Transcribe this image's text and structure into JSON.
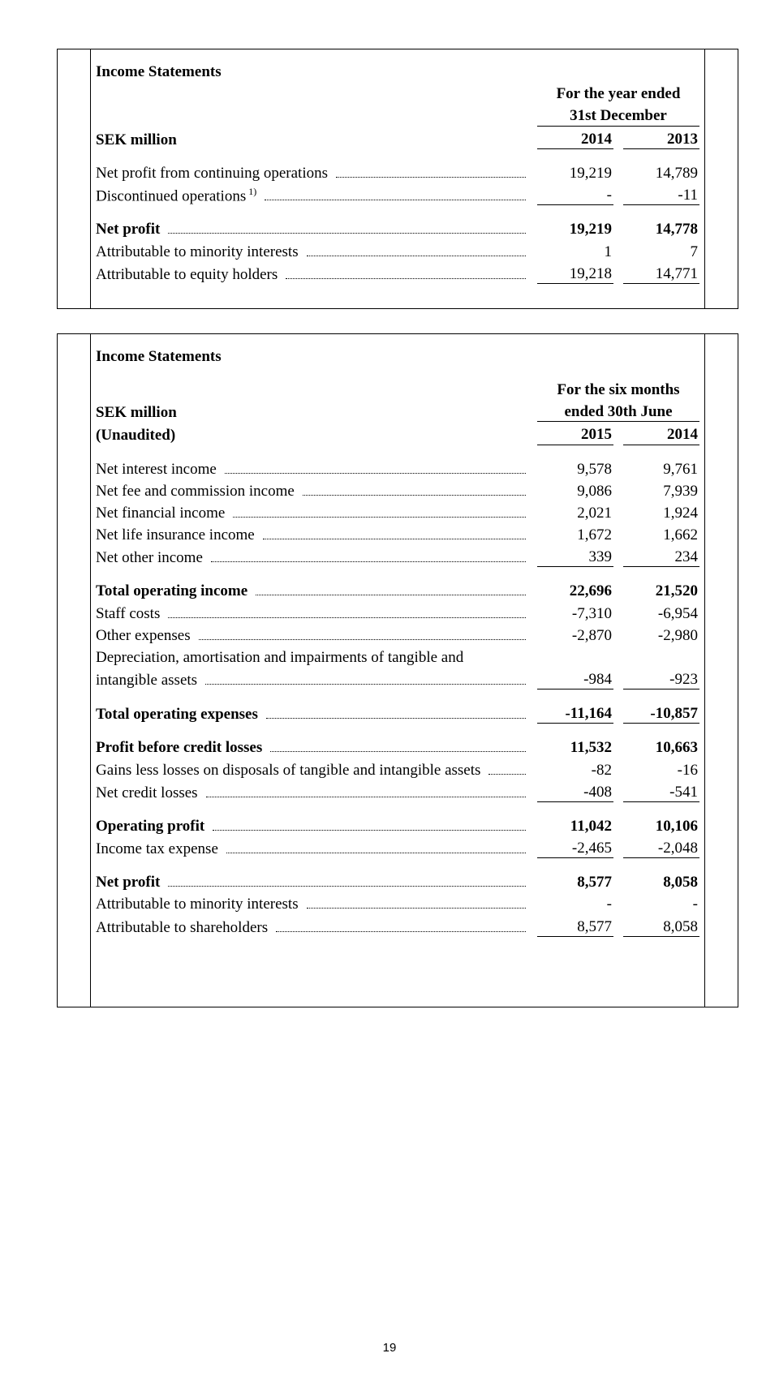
{
  "page_number": "19",
  "table1": {
    "title": "Income Statements",
    "period_header": [
      "For the year ended",
      "31st December"
    ],
    "unit_label": "SEK million",
    "years": [
      "2014",
      "2013"
    ],
    "rows": [
      {
        "label": "Net profit from continuing operations",
        "suffix": "",
        "v1": "19,219",
        "v2": "14,789"
      },
      {
        "label": "Discontinued operations",
        "suffix": " 1)",
        "v1": "-",
        "v2": "-11"
      }
    ],
    "net_profit": {
      "label": "Net profit",
      "v1": "19,219",
      "v2": "14,778"
    },
    "attrib": [
      {
        "label": "Attributable to minority interests",
        "v1": "1",
        "v2": "7"
      },
      {
        "label": "Attributable to equity holders",
        "v1": "19,218",
        "v2": "14,771"
      }
    ]
  },
  "table2": {
    "title": "Income Statements",
    "unit_label": "SEK million",
    "period_header": [
      "For the six months",
      "ended 30th June"
    ],
    "unaudited": "(Unaudited)",
    "years": [
      "2015",
      "2014"
    ],
    "income_rows": [
      {
        "label": "Net interest income",
        "v1": "9,578",
        "v2": "9,761"
      },
      {
        "label": "Net fee and commission income",
        "v1": "9,086",
        "v2": "7,939"
      },
      {
        "label": "Net financial income",
        "v1": "2,021",
        "v2": "1,924"
      },
      {
        "label": "Net life insurance income",
        "v1": "1,672",
        "v2": "1,662"
      },
      {
        "label": "Net other income",
        "v1": "339",
        "v2": "234"
      }
    ],
    "total_op_income": {
      "label": "Total operating income",
      "v1": "22,696",
      "v2": "21,520"
    },
    "expense_rows": [
      {
        "label": "Staff costs",
        "v1": "-7,310",
        "v2": "-6,954"
      },
      {
        "label": "Other expenses",
        "v1": "-2,870",
        "v2": "-2,980"
      }
    ],
    "depr_label_line1": "Depreciation, amortisation and impairments of tangible and",
    "depr_label_line2": "intangible assets",
    "depr_vals": {
      "v1": "-984",
      "v2": "-923"
    },
    "total_op_exp": {
      "label": "Total operating expenses",
      "v1": "-11,164",
      "v2": "-10,857"
    },
    "profit_before": {
      "label": "Profit before credit losses",
      "v1": "11,532",
      "v2": "10,663"
    },
    "credit_rows": [
      {
        "label": "Gains less losses on disposals of tangible and intangible assets",
        "v1": "-82",
        "v2": "-16"
      },
      {
        "label": "Net credit losses",
        "v1": "-408",
        "v2": "-541"
      }
    ],
    "op_profit": {
      "label": "Operating profit",
      "v1": "11,042",
      "v2": "10,106"
    },
    "tax": {
      "label": "Income tax expense",
      "v1": "-2,465",
      "v2": "-2,048"
    },
    "net_profit": {
      "label": "Net profit",
      "v1": "8,577",
      "v2": "8,058"
    },
    "attrib": [
      {
        "label": "Attributable to minority interests",
        "v1": "-",
        "v2": "-"
      },
      {
        "label": "Attributable to shareholders",
        "v1": "8,577",
        "v2": "8,058"
      }
    ]
  }
}
